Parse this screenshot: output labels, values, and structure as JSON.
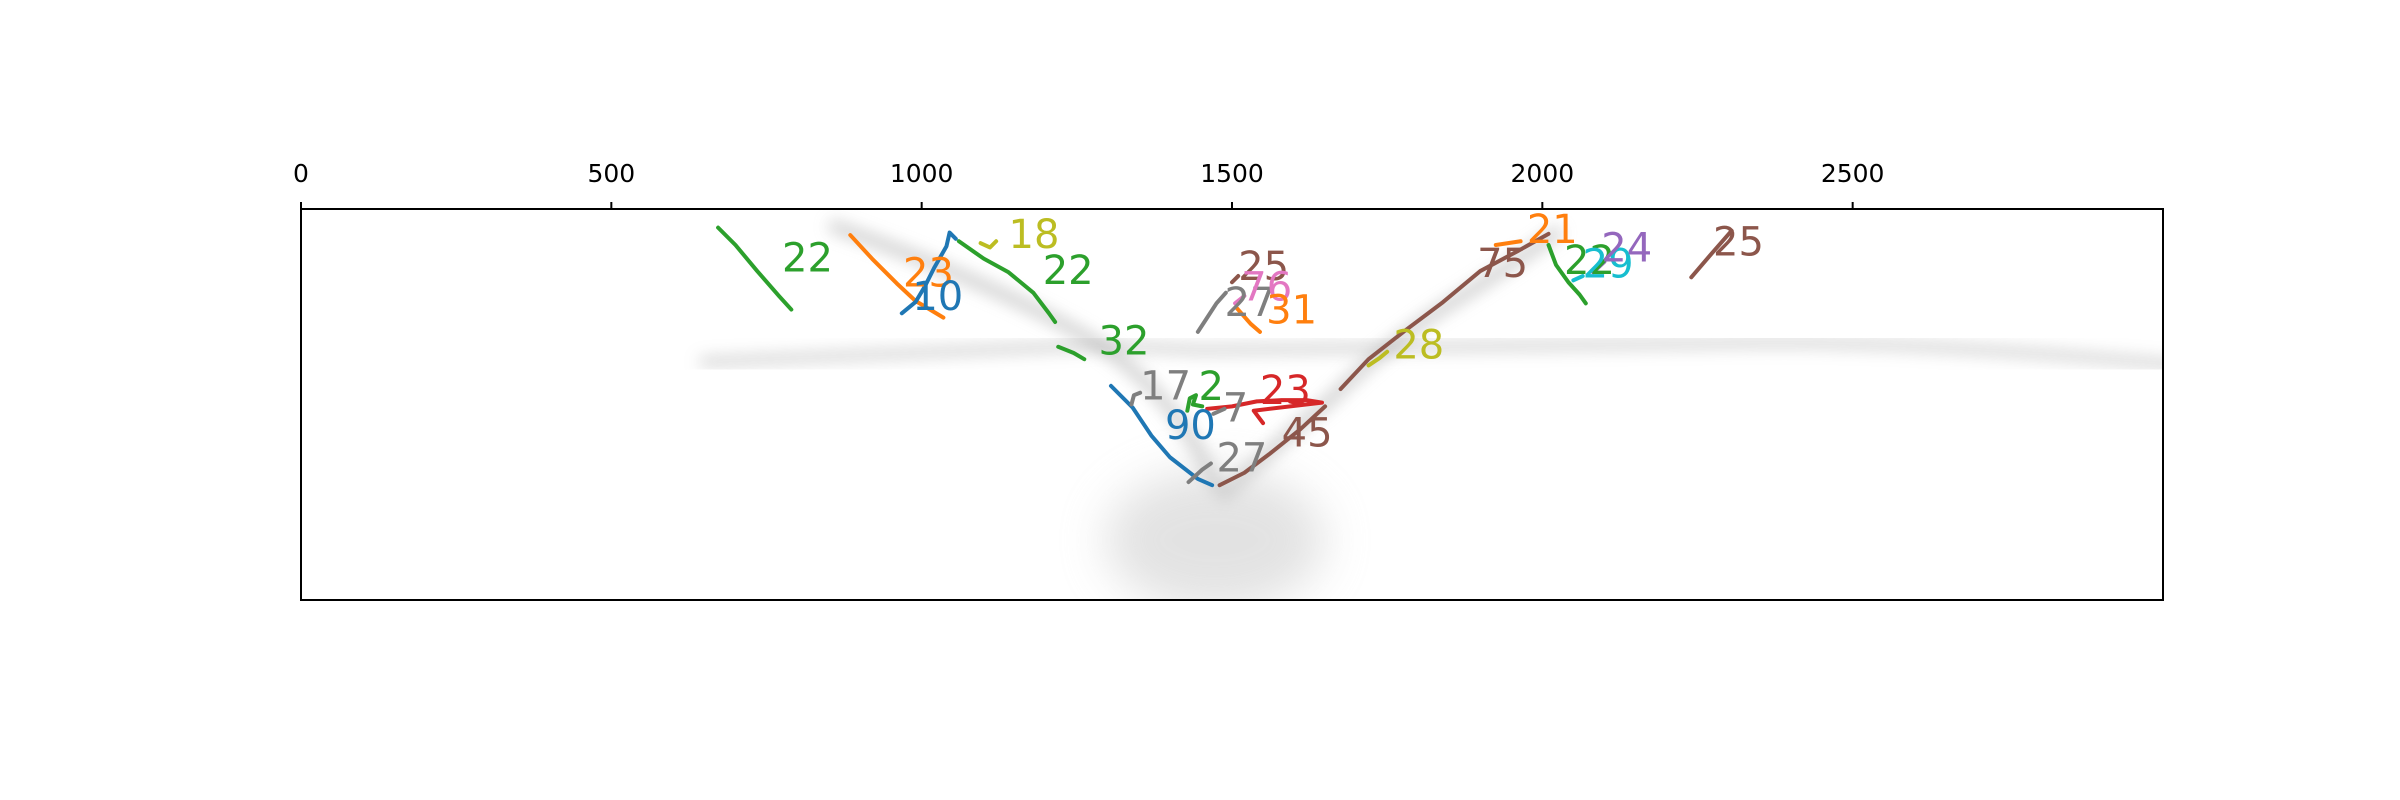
{
  "chart_data": {
    "type": "line",
    "title": "",
    "xlabel": "",
    "ylabel": "",
    "xlim": [
      0,
      3000
    ],
    "ylim": [
      630,
      0
    ],
    "x_ticks": [
      "0",
      "500",
      "1000",
      "1500",
      "2000",
      "2500"
    ],
    "x_tick_values": [
      0,
      500,
      1000,
      1500,
      2000,
      2500
    ],
    "x_axis_position": "top",
    "y_axis_ticks": false,
    "grid": false,
    "legend": "none",
    "background": "grayscale seismic-like image with a V-shaped reflector and faint horizontal bands",
    "series": [
      {
        "label": "22",
        "color": "#2ca02c",
        "points": [
          [
            672,
            30
          ],
          [
            700,
            58
          ],
          [
            735,
            100
          ],
          [
            770,
            140
          ],
          [
            790,
            162
          ]
        ],
        "label_at": [
          775,
          78
        ]
      },
      {
        "label": "23",
        "color": "#ff7f0e",
        "points": [
          [
            885,
            42
          ],
          [
            920,
            80
          ],
          [
            960,
            120
          ],
          [
            990,
            148
          ],
          [
            1035,
            175
          ]
        ],
        "label_at": [
          970,
          102
        ]
      },
      {
        "label": "10",
        "color": "#1f77b4",
        "points": [
          [
            968,
            168
          ],
          [
            990,
            150
          ],
          [
            1005,
            125
          ],
          [
            1020,
            95
          ],
          [
            1040,
            60
          ],
          [
            1045,
            38
          ],
          [
            1055,
            48
          ]
        ],
        "label_at": [
          985,
          140
        ]
      },
      {
        "label": "18",
        "color": "#bcbd22",
        "points": [
          [
            1095,
            55
          ],
          [
            1110,
            62
          ],
          [
            1120,
            52
          ]
        ],
        "label_at": [
          1140,
          40
        ]
      },
      {
        "label": "22",
        "color": "#2ca02c",
        "points": [
          [
            1060,
            52
          ],
          [
            1100,
            80
          ],
          [
            1140,
            102
          ],
          [
            1180,
            135
          ],
          [
            1205,
            168
          ],
          [
            1215,
            182
          ]
        ],
        "label_at": [
          1195,
          98
        ]
      },
      {
        "label": "32",
        "color": "#2ca02c",
        "points": [
          [
            1220,
            222
          ],
          [
            1245,
            232
          ],
          [
            1262,
            242
          ]
        ],
        "label_at": [
          1285,
          212
        ]
      },
      {
        "label": "90",
        "color": "#1f77b4",
        "points": [
          [
            1305,
            285
          ],
          [
            1340,
            320
          ],
          [
            1370,
            365
          ],
          [
            1400,
            400
          ],
          [
            1445,
            435
          ],
          [
            1468,
            445
          ]
        ],
        "label_at": [
          1392,
          348
        ]
      },
      {
        "label": "17",
        "color": "#7f7f7f",
        "points": [
          [
            1338,
            315
          ],
          [
            1342,
            300
          ],
          [
            1352,
            296
          ]
        ],
        "label_at": [
          1352,
          284
        ]
      },
      {
        "label": "2",
        "color": "#2ca02c",
        "points": [
          [
            1428,
            325
          ],
          [
            1432,
            305
          ],
          [
            1442,
            300
          ],
          [
            1437,
            315
          ],
          [
            1452,
            318
          ]
        ],
        "label_at": [
          1446,
          285
        ]
      },
      {
        "label": "27",
        "color": "#7f7f7f",
        "points": [
          [
            1430,
            440
          ],
          [
            1452,
            420
          ],
          [
            1466,
            410
          ]
        ],
        "label_at": [
          1475,
          400
        ]
      },
      {
        "label": "23",
        "color": "#d62728",
        "points": [
          [
            1460,
            322
          ],
          [
            1500,
            318
          ],
          [
            1540,
            310
          ],
          [
            1580,
            308
          ],
          [
            1620,
            308
          ],
          [
            1645,
            312
          ],
          [
            1535,
            325
          ],
          [
            1550,
            345
          ]
        ],
        "label_at": [
          1545,
          292
        ]
      },
      {
        "label": "7",
        "color": "#7f7f7f",
        "points": [
          [
            1470,
            330
          ],
          [
            1488,
            322
          ]
        ],
        "label_at": [
          1485,
          320
        ]
      },
      {
        "label": "45",
        "color": "#8c564b",
        "points": [
          [
            1480,
            445
          ],
          [
            1520,
            425
          ],
          [
            1560,
            395
          ],
          [
            1610,
            355
          ],
          [
            1650,
            318
          ]
        ],
        "label_at": [
          1580,
          360
        ]
      },
      {
        "label": "27",
        "color": "#7f7f7f",
        "points": [
          [
            1445,
            198
          ],
          [
            1460,
            175
          ],
          [
            1475,
            152
          ],
          [
            1490,
            135
          ]
        ],
        "label_at": [
          1488,
          150
        ]
      },
      {
        "label": "25",
        "color": "#8c564b",
        "points": [
          [
            1500,
            118
          ],
          [
            1510,
            108
          ]
        ],
        "label_at": [
          1510,
          92
        ]
      },
      {
        "label": "76",
        "color": "#e377c2",
        "points": [
          [
            1505,
            152
          ],
          [
            1520,
            140
          ]
        ],
        "label_at": [
          1515,
          125
        ]
      },
      {
        "label": "31",
        "color": "#ff7f0e",
        "points": [
          [
            1508,
            160
          ],
          [
            1530,
            185
          ],
          [
            1545,
            198
          ]
        ],
        "label_at": [
          1555,
          162
        ]
      },
      {
        "label": "28",
        "color": "#bcbd22",
        "points": [
          [
            1720,
            252
          ],
          [
            1738,
            240
          ],
          [
            1750,
            230
          ]
        ],
        "label_at": [
          1760,
          218
        ]
      },
      {
        "label": "75",
        "color": "#8c564b",
        "points": [
          [
            1675,
            290
          ],
          [
            1720,
            242
          ],
          [
            1780,
            195
          ],
          [
            1840,
            150
          ],
          [
            1900,
            100
          ],
          [
            1960,
            68
          ],
          [
            2010,
            40
          ]
        ],
        "label_at": [
          1895,
          87
        ]
      },
      {
        "label": "21",
        "color": "#ff7f0e",
        "points": [
          [
            1925,
            58
          ],
          [
            1965,
            52
          ]
        ],
        "label_at": [
          1975,
          32
        ]
      },
      {
        "label": "22",
        "color": "#2ca02c",
        "points": [
          [
            2010,
            58
          ],
          [
            2022,
            90
          ],
          [
            2042,
            118
          ],
          [
            2060,
            138
          ],
          [
            2070,
            152
          ]
        ],
        "label_at": [
          2035,
          82
        ]
      },
      {
        "label": "29",
        "color": "#17becf",
        "points": [
          [
            2050,
            115
          ],
          [
            2065,
            108
          ]
        ],
        "label_at": [
          2065,
          88
        ]
      },
      {
        "label": "24",
        "color": "#9467bd",
        "points": [
          [
            2082,
            102
          ],
          [
            2100,
            85
          ]
        ],
        "label_at": [
          2095,
          62
        ]
      },
      {
        "label": "25",
        "color": "#8c564b",
        "points": [
          [
            2240,
            110
          ],
          [
            2270,
            75
          ],
          [
            2305,
            35
          ]
        ],
        "label_at": [
          2275,
          52
        ]
      }
    ]
  }
}
